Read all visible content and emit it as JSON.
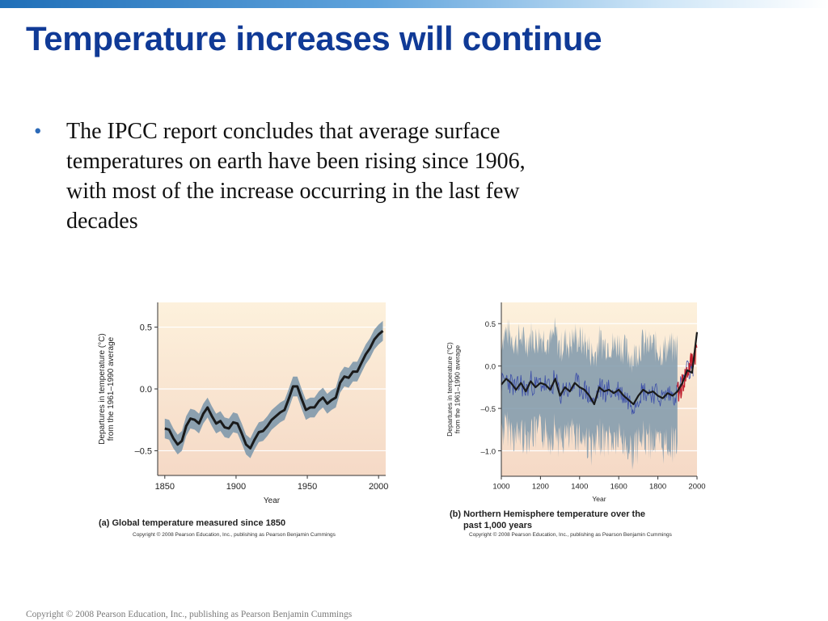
{
  "slide": {
    "title": "Temperature increases will continue",
    "bullets": [
      "The IPCC report concludes that average surface temperatures on earth have been rising since 1906, with most of the increase occurring in the last few decades"
    ],
    "bullet_symbol": "•",
    "footer": "Copyright © 2008 Pearson Education, Inc., publishing as Pearson Benjamin Cummings"
  },
  "colors": {
    "title": "#103a96",
    "band": "#7f99ac",
    "line": "#1a1a1a",
    "background_top": "#fdf1dc",
    "background_bottom": "#f5d9c6",
    "proxy": "#3d4fa8",
    "instrumental": "#c0202e"
  },
  "chart_data": [
    {
      "type": "line",
      "caption": "(a) Global temperature measured since 1850",
      "copyright": "Copyright © 2008 Pearson Education, Inc., publishing as Pearson Benjamin Cummings",
      "xlabel": "Year",
      "ylabel_lines": [
        "Departures in temperature (°C)",
        "from the 1961–1990 average"
      ],
      "xlim": [
        1845,
        2005
      ],
      "ylim": [
        -0.7,
        0.7
      ],
      "xticks": [
        1850,
        1900,
        1950,
        2000
      ],
      "xtick_labels": [
        "1850",
        "1900",
        "1950",
        "2000"
      ],
      "yticks": [
        0.5,
        0.0,
        -0.5
      ],
      "ytick_labels": [
        "0.5",
        "0.0",
        "–0.5"
      ],
      "grid": "horizontal",
      "band_halfwidth": 0.08,
      "series": [
        {
          "x": [
            1850,
            1853,
            1856,
            1859,
            1862,
            1865,
            1868,
            1871,
            1874,
            1877,
            1880,
            1883,
            1886,
            1889,
            1892,
            1895,
            1898,
            1901,
            1904,
            1907,
            1910,
            1913,
            1916,
            1919,
            1922,
            1925,
            1928,
            1931,
            1934,
            1937,
            1940,
            1943,
            1946,
            1949,
            1952,
            1955,
            1958,
            1961,
            1964,
            1967,
            1970,
            1973,
            1976,
            1979,
            1982,
            1985,
            1988,
            1991,
            1994,
            1997,
            2000,
            2003
          ],
          "y": [
            -0.32,
            -0.33,
            -0.4,
            -0.45,
            -0.42,
            -0.3,
            -0.24,
            -0.25,
            -0.28,
            -0.2,
            -0.15,
            -0.22,
            -0.28,
            -0.26,
            -0.31,
            -0.32,
            -0.27,
            -0.28,
            -0.36,
            -0.45,
            -0.48,
            -0.41,
            -0.35,
            -0.34,
            -0.3,
            -0.25,
            -0.22,
            -0.19,
            -0.17,
            -0.08,
            0.02,
            0.02,
            -0.08,
            -0.17,
            -0.15,
            -0.15,
            -0.1,
            -0.07,
            -0.12,
            -0.09,
            -0.07,
            0.05,
            0.1,
            0.09,
            0.14,
            0.14,
            0.21,
            0.28,
            0.33,
            0.4,
            0.44,
            0.47
          ]
        }
      ]
    },
    {
      "type": "line",
      "caption_lines": [
        "(b) Northern Hemisphere temperature over the",
        "past 1,000 years"
      ],
      "copyright": "Copyright © 2008 Pearson Education, Inc., publishing as Pearson Benjamin Cummings",
      "xlabel": "Year",
      "ylabel_lines": [
        "Departures in temperature (°C)",
        "from the 1961–1990 average"
      ],
      "xlim": [
        1000,
        2000
      ],
      "ylim": [
        -1.3,
        0.75
      ],
      "xticks": [
        1000,
        1200,
        1400,
        1600,
        1800,
        2000
      ],
      "xtick_labels": [
        "1000",
        "1200",
        "1400",
        "1600",
        "1800",
        "2000"
      ],
      "yticks": [
        0.5,
        0.0,
        -0.5,
        -1.0
      ],
      "ytick_labels": [
        "0.5",
        "0.0",
        "–0.5",
        "–1.0"
      ],
      "grid": "horizontal",
      "band_halfwidth": 0.5,
      "series": [
        {
          "x": [
            1000,
            1025,
            1050,
            1075,
            1100,
            1125,
            1150,
            1175,
            1200,
            1225,
            1250,
            1275,
            1300,
            1325,
            1350,
            1375,
            1400,
            1425,
            1450,
            1475,
            1500,
            1525,
            1550,
            1575,
            1600,
            1625,
            1650,
            1675,
            1700,
            1725,
            1750,
            1775,
            1800,
            1825,
            1850,
            1875,
            1900,
            1925,
            1950,
            1975,
            2000
          ],
          "y": [
            -0.22,
            -0.15,
            -0.2,
            -0.28,
            -0.2,
            -0.3,
            -0.18,
            -0.25,
            -0.2,
            -0.22,
            -0.28,
            -0.15,
            -0.35,
            -0.25,
            -0.3,
            -0.2,
            -0.25,
            -0.28,
            -0.35,
            -0.45,
            -0.25,
            -0.3,
            -0.28,
            -0.32,
            -0.28,
            -0.35,
            -0.4,
            -0.45,
            -0.35,
            -0.28,
            -0.32,
            -0.3,
            -0.35,
            -0.38,
            -0.32,
            -0.35,
            -0.3,
            -0.2,
            -0.05,
            -0.08,
            0.4
          ]
        }
      ]
    }
  ]
}
